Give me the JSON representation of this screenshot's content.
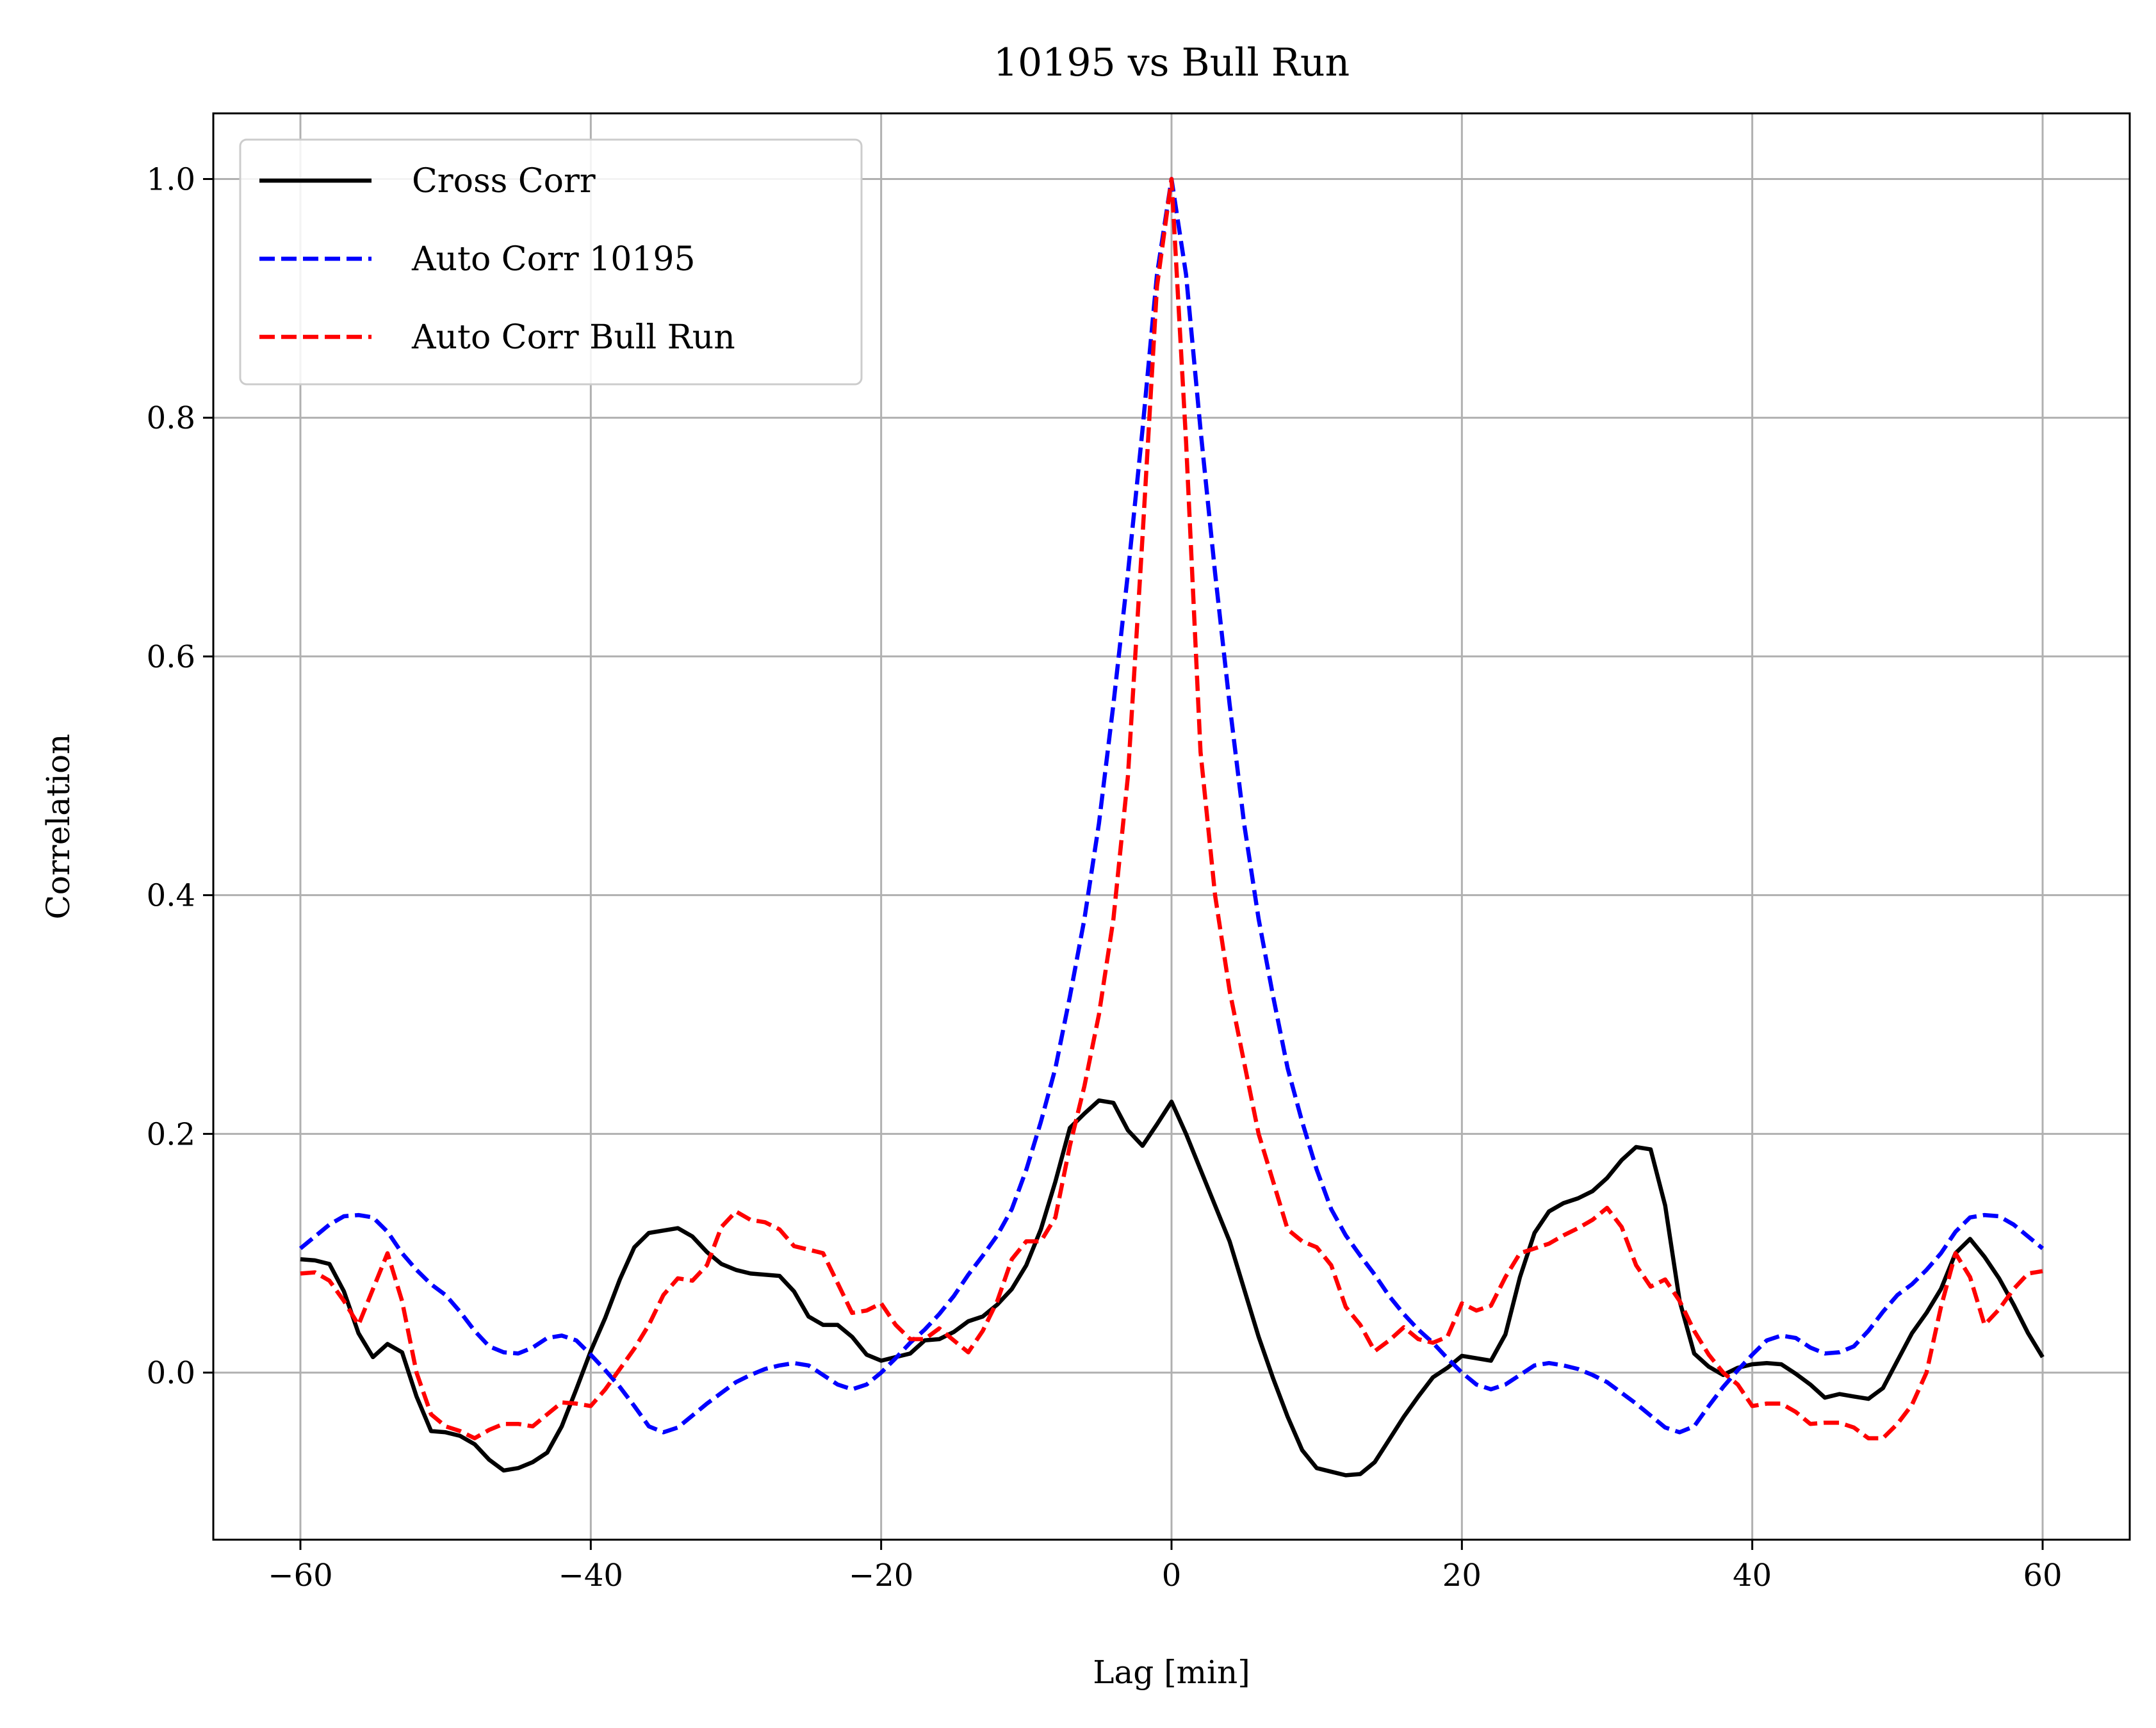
{
  "chart_data": {
    "type": "line",
    "title": "10195 vs Bull Run",
    "xlabel": "Lag [min]",
    "ylabel": "Correlation",
    "xlim": [
      -66,
      66
    ],
    "ylim": [
      -0.14,
      1.055
    ],
    "xticks": [
      -60,
      -40,
      -20,
      0,
      20,
      40,
      60
    ],
    "xtick_labels": [
      "−60",
      "−40",
      "−20",
      "0",
      "20",
      "40",
      "60"
    ],
    "yticks": [
      0.0,
      0.2,
      0.4,
      0.6,
      0.8,
      1.0
    ],
    "ytick_labels": [
      "0.0",
      "0.2",
      "0.4",
      "0.6",
      "0.8",
      "1.0"
    ],
    "grid": true,
    "legend_position": "top-left",
    "series": [
      {
        "name": "Cross Corr",
        "color": "#000000",
        "style": "solid",
        "x": [
          -60,
          -59,
          -58,
          -57,
          -56,
          -55,
          -54,
          -53,
          -52,
          -51,
          -50,
          -49,
          -48,
          -47,
          -46,
          -45,
          -44,
          -43,
          -42,
          -41,
          -40,
          -39,
          -38,
          -37,
          -36,
          -35,
          -34,
          -33,
          -32,
          -31,
          -30,
          -29,
          -28,
          -27,
          -26,
          -25,
          -24,
          -23,
          -22,
          -21,
          -20,
          -19,
          -18,
          -17,
          -16,
          -15,
          -14,
          -13,
          -12,
          -11,
          -10,
          -9,
          -8,
          -7,
          -6,
          -5,
          -4,
          -3,
          -2,
          -1,
          0,
          1,
          2,
          3,
          4,
          5,
          6,
          7,
          8,
          9,
          10,
          11,
          12,
          13,
          14,
          15,
          16,
          17,
          18,
          19,
          20,
          21,
          22,
          23,
          24,
          25,
          26,
          27,
          28,
          29,
          30,
          31,
          32,
          33,
          34,
          35,
          36,
          37,
          38,
          39,
          40,
          41,
          42,
          43,
          44,
          45,
          46,
          47,
          48,
          49,
          50,
          51,
          52,
          53,
          54,
          55,
          56,
          57,
          58,
          59,
          60
        ],
        "y": [
          0.095,
          0.094,
          0.091,
          0.068,
          0.033,
          0.013,
          0.024,
          0.017,
          -0.02,
          -0.049,
          -0.05,
          -0.053,
          -0.06,
          -0.073,
          -0.082,
          -0.08,
          -0.075,
          -0.067,
          -0.045,
          -0.014,
          0.018,
          0.046,
          0.078,
          0.105,
          0.117,
          0.119,
          0.121,
          0.114,
          0.101,
          0.091,
          0.086,
          0.083,
          0.082,
          0.081,
          0.068,
          0.047,
          0.04,
          0.04,
          0.03,
          0.015,
          0.01,
          0.013,
          0.016,
          0.027,
          0.028,
          0.034,
          0.043,
          0.047,
          0.057,
          0.07,
          0.09,
          0.12,
          0.16,
          0.205,
          0.217,
          0.228,
          0.226,
          0.203,
          0.19,
          0.208,
          0.227,
          0.2,
          0.17,
          0.14,
          0.11,
          0.07,
          0.03,
          -0.005,
          -0.037,
          -0.065,
          -0.08,
          -0.083,
          -0.086,
          -0.085,
          -0.075,
          -0.056,
          -0.037,
          -0.02,
          -0.004,
          0.004,
          0.014,
          0.012,
          0.01,
          0.032,
          0.08,
          0.117,
          0.135,
          0.142,
          0.146,
          0.152,
          0.163,
          0.178,
          0.189,
          0.187,
          0.14,
          0.06,
          0.016,
          0.005,
          -0.002,
          0.004,
          0.007,
          0.008,
          0.007,
          -0.001,
          -0.01,
          -0.021,
          -0.018,
          -0.02,
          -0.022,
          -0.013,
          0.01,
          0.033,
          0.05,
          0.07,
          0.1,
          0.112,
          0.097,
          0.079,
          0.057,
          0.033,
          0.013
        ]
      },
      {
        "name": "Auto Corr 10195",
        "color": "#0000ff",
        "style": "dashed",
        "x": [
          -60,
          -59,
          -58,
          -57,
          -56,
          -55,
          -54,
          -53,
          -52,
          -51,
          -50,
          -49,
          -48,
          -47,
          -46,
          -45,
          -44,
          -43,
          -42,
          -41,
          -40,
          -39,
          -38,
          -37,
          -36,
          -35,
          -34,
          -33,
          -32,
          -31,
          -30,
          -29,
          -28,
          -27,
          -26,
          -25,
          -24,
          -23,
          -22,
          -21,
          -20,
          -19,
          -18,
          -17,
          -16,
          -15,
          -14,
          -13,
          -12,
          -11,
          -10,
          -9,
          -8,
          -7,
          -6,
          -5,
          -4,
          -3,
          -2,
          -1,
          0,
          1,
          2,
          3,
          4,
          5,
          6,
          7,
          8,
          9,
          10,
          11,
          12,
          13,
          14,
          15,
          16,
          17,
          18,
          19,
          20,
          21,
          22,
          23,
          24,
          25,
          26,
          27,
          28,
          29,
          30,
          31,
          32,
          33,
          34,
          35,
          36,
          37,
          38,
          39,
          40,
          41,
          42,
          43,
          44,
          45,
          46,
          47,
          48,
          49,
          50,
          51,
          52,
          53,
          54,
          55,
          56,
          57,
          58,
          59,
          60
        ],
        "y": [
          0.104,
          0.114,
          0.124,
          0.131,
          0.132,
          0.13,
          0.118,
          0.1,
          0.086,
          0.074,
          0.065,
          0.051,
          0.035,
          0.022,
          0.017,
          0.016,
          0.021,
          0.029,
          0.031,
          0.027,
          0.015,
          0.002,
          -0.012,
          -0.028,
          -0.045,
          -0.05,
          -0.046,
          -0.036,
          -0.026,
          -0.017,
          -0.008,
          -0.002,
          0.003,
          0.006,
          0.008,
          0.006,
          -0.002,
          -0.01,
          -0.014,
          -0.01,
          0.0,
          0.012,
          0.025,
          0.036,
          0.049,
          0.064,
          0.082,
          0.098,
          0.115,
          0.137,
          0.17,
          0.21,
          0.255,
          0.315,
          0.38,
          0.46,
          0.56,
          0.67,
          0.79,
          0.92,
          1.0,
          0.92,
          0.79,
          0.67,
          0.56,
          0.46,
          0.38,
          0.315,
          0.255,
          0.21,
          0.17,
          0.137,
          0.115,
          0.098,
          0.082,
          0.064,
          0.049,
          0.036,
          0.025,
          0.012,
          0.0,
          -0.01,
          -0.014,
          -0.01,
          -0.002,
          0.006,
          0.008,
          0.006,
          0.003,
          -0.002,
          -0.008,
          -0.017,
          -0.026,
          -0.036,
          -0.046,
          -0.05,
          -0.045,
          -0.028,
          -0.012,
          0.002,
          0.015,
          0.027,
          0.031,
          0.029,
          0.021,
          0.016,
          0.017,
          0.022,
          0.035,
          0.051,
          0.065,
          0.074,
          0.086,
          0.1,
          0.118,
          0.13,
          0.132,
          0.131,
          0.124,
          0.114,
          0.104
        ]
      },
      {
        "name": "Auto Corr Bull Run",
        "color": "#ff0000",
        "style": "dashed",
        "x": [
          -60,
          -59,
          -58,
          -57,
          -56,
          -55,
          -54,
          -53,
          -52,
          -51,
          -50,
          -49,
          -48,
          -47,
          -46,
          -45,
          -44,
          -43,
          -42,
          -41,
          -40,
          -39,
          -38,
          -37,
          -36,
          -35,
          -34,
          -33,
          -32,
          -31,
          -30,
          -29,
          -28,
          -27,
          -26,
          -25,
          -24,
          -23,
          -22,
          -21,
          -20,
          -19,
          -18,
          -17,
          -16,
          -15,
          -14,
          -13,
          -12,
          -11,
          -10,
          -9,
          -8,
          -7,
          -6,
          -5,
          -4,
          -3,
          -2,
          -1,
          0,
          1,
          2,
          3,
          4,
          5,
          6,
          7,
          8,
          9,
          10,
          11,
          12,
          13,
          14,
          15,
          16,
          17,
          18,
          19,
          20,
          21,
          22,
          23,
          24,
          25,
          26,
          27,
          28,
          29,
          30,
          31,
          32,
          33,
          34,
          35,
          36,
          37,
          38,
          39,
          40,
          41,
          42,
          43,
          44,
          45,
          46,
          47,
          48,
          49,
          50,
          51,
          52,
          53,
          54,
          55,
          56,
          57,
          58,
          59,
          60
        ],
        "y": [
          0.083,
          0.084,
          0.077,
          0.06,
          0.04,
          0.07,
          0.1,
          0.06,
          0.0,
          -0.035,
          -0.045,
          -0.049,
          -0.055,
          -0.048,
          -0.043,
          -0.043,
          -0.045,
          -0.035,
          -0.025,
          -0.026,
          -0.028,
          -0.014,
          0.003,
          0.02,
          0.04,
          0.065,
          0.079,
          0.077,
          0.09,
          0.122,
          0.135,
          0.128,
          0.126,
          0.12,
          0.106,
          0.103,
          0.1,
          0.075,
          0.05,
          0.052,
          0.058,
          0.04,
          0.028,
          0.028,
          0.037,
          0.027,
          0.017,
          0.035,
          0.06,
          0.095,
          0.11,
          0.11,
          0.13,
          0.19,
          0.24,
          0.3,
          0.38,
          0.5,
          0.7,
          0.91,
          1.0,
          0.78,
          0.52,
          0.4,
          0.32,
          0.26,
          0.2,
          0.16,
          0.12,
          0.11,
          0.105,
          0.09,
          0.055,
          0.04,
          0.018,
          0.027,
          0.038,
          0.028,
          0.025,
          0.03,
          0.058,
          0.052,
          0.056,
          0.08,
          0.1,
          0.104,
          0.108,
          0.115,
          0.121,
          0.128,
          0.138,
          0.122,
          0.09,
          0.072,
          0.078,
          0.06,
          0.035,
          0.015,
          0.0,
          -0.01,
          -0.028,
          -0.026,
          -0.026,
          -0.033,
          -0.043,
          -0.042,
          -0.042,
          -0.046,
          -0.055,
          -0.055,
          -0.043,
          -0.027,
          0.0,
          0.055,
          0.1,
          0.08,
          0.04,
          0.053,
          0.07,
          0.083,
          0.085
        ]
      }
    ]
  }
}
